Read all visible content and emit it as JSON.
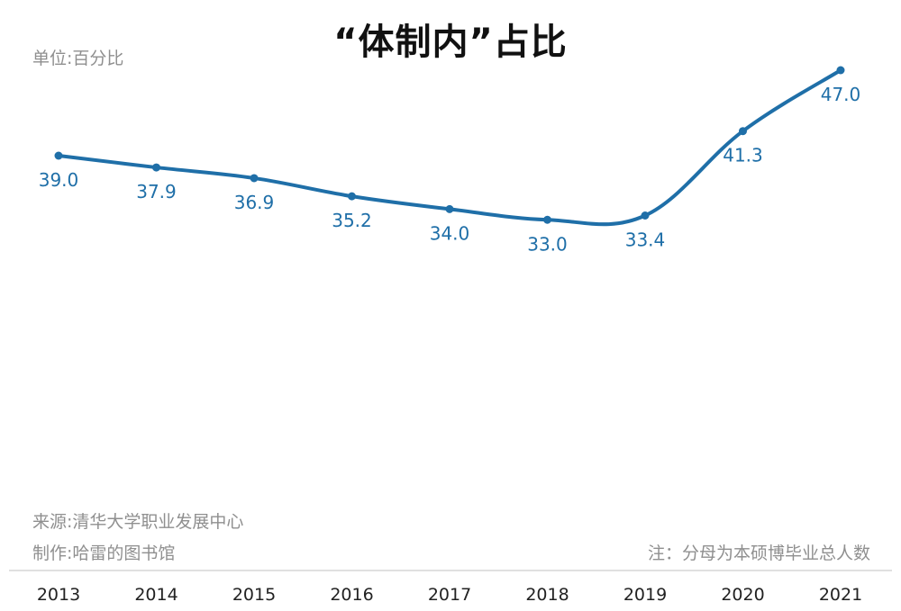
{
  "title": "“体制内”占比",
  "unit": "单位:百分比",
  "source": "来源:清华大学职业发展中心",
  "maker": "制作:哈雷的图书馆",
  "note": "注：分母为本硕博毕业总人数",
  "colors": {
    "line": "#1f6fa8",
    "axis": "#d6d6d6",
    "muted": "#8f8f8f"
  },
  "chart_data": {
    "type": "line",
    "categories": [
      "2013",
      "2014",
      "2015",
      "2016",
      "2017",
      "2018",
      "2019",
      "2020",
      "2021"
    ],
    "series": [
      {
        "values": [
          39.0,
          37.9,
          36.9,
          35.2,
          34.0,
          33.0,
          33.4,
          41.3,
          47.0
        ]
      }
    ],
    "data_labels": [
      "39.0",
      "37.9",
      "36.9",
      "35.2",
      "34.0",
      "33.0",
      "33.4",
      "41.3",
      "47.0"
    ],
    "title": "“体制内”占比",
    "xlabel": "",
    "ylabel": "",
    "grid": false,
    "legend": "none"
  }
}
